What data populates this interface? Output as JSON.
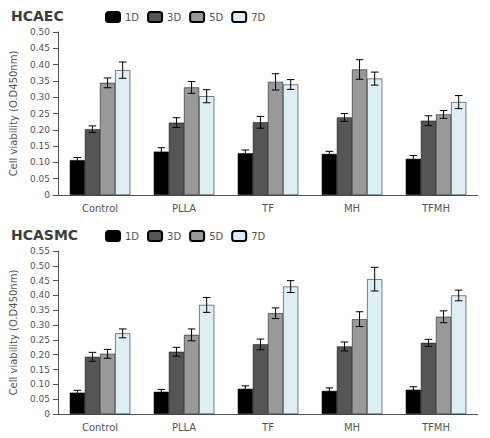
{
  "chart_data": [
    {
      "type": "bar",
      "title": "HCAEC",
      "y_label": "Cell viability (O.D450nm)",
      "categories": [
        "Control",
        "PLLA",
        "TF",
        "MH",
        "TFMH"
      ],
      "series": [
        {
          "name": "1D",
          "color": "#000000",
          "values": [
            0.107,
            0.133,
            0.128,
            0.126,
            0.111
          ],
          "errors": [
            0.008,
            0.012,
            0.01,
            0.008,
            0.01
          ]
        },
        {
          "name": "3D",
          "color": "#555555",
          "values": [
            0.202,
            0.222,
            0.223,
            0.238,
            0.228
          ],
          "errors": [
            0.01,
            0.015,
            0.018,
            0.012,
            0.015
          ]
        },
        {
          "name": "5D",
          "color": "#999999",
          "values": [
            0.344,
            0.33,
            0.347,
            0.385,
            0.247
          ],
          "errors": [
            0.015,
            0.018,
            0.025,
            0.03,
            0.012
          ]
        },
        {
          "name": "7D",
          "color": "#ddeef5",
          "values": [
            0.383,
            0.303,
            0.339,
            0.357,
            0.285
          ],
          "errors": [
            0.025,
            0.02,
            0.015,
            0.02,
            0.02
          ]
        }
      ],
      "ylim": [
        0,
        0.5
      ],
      "yticks": [
        0,
        0.05,
        {
          "value": 0.1,
          "label": "0.10"
        },
        0.15,
        {
          "value": 0.2,
          "label": "0.20"
        },
        0.25,
        {
          "value": 0.3,
          "label": "0.30"
        },
        0.35,
        {
          "value": 0.4,
          "label": "0.40"
        },
        0.45,
        {
          "value": 0.5,
          "label": "0.50"
        }
      ],
      "grid": false,
      "legend": "upper left"
    },
    {
      "type": "bar",
      "title": "HCASMC",
      "y_label": "Cell viability (O.D450nm)",
      "categories": [
        "Control",
        "PLLA",
        "TF",
        "MH",
        "TFMH"
      ],
      "series": [
        {
          "name": "1D",
          "color": "#000000",
          "values": [
            0.072,
            0.075,
            0.085,
            0.078,
            0.082
          ],
          "errors": [
            0.008,
            0.008,
            0.01,
            0.01,
            0.01
          ]
        },
        {
          "name": "3D",
          "color": "#555555",
          "values": [
            0.193,
            0.21,
            0.235,
            0.228,
            0.24
          ],
          "errors": [
            0.015,
            0.015,
            0.018,
            0.015,
            0.012
          ]
        },
        {
          "name": "5D",
          "color": "#999999",
          "values": [
            0.203,
            0.267,
            0.34,
            0.32,
            0.328
          ],
          "errors": [
            0.015,
            0.02,
            0.018,
            0.025,
            0.02
          ]
        },
        {
          "name": "7D",
          "color": "#ddeef5",
          "values": [
            0.272,
            0.368,
            0.43,
            0.455,
            0.4
          ],
          "errors": [
            0.015,
            0.025,
            0.02,
            0.04,
            0.018
          ]
        }
      ],
      "ylim": [
        0,
        0.55
      ],
      "yticks": [
        0,
        0.05,
        {
          "value": 0.1,
          "label": "0.10"
        },
        0.15,
        {
          "value": 0.2,
          "label": "0.20"
        },
        0.25,
        {
          "value": 0.3,
          "label": "0.30"
        },
        0.35,
        {
          "value": 0.4,
          "label": "0.40"
        },
        0.45,
        {
          "value": 0.5,
          "label": "0.50"
        },
        0.55
      ],
      "grid": false,
      "legend": "upper left"
    }
  ]
}
